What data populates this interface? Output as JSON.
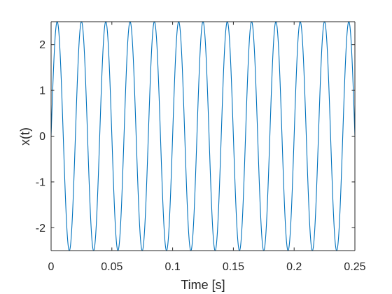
{
  "chart_data": {
    "type": "line",
    "title": "",
    "xlabel": "Time [s]",
    "ylabel": "x(t)",
    "xlim": [
      0,
      0.25
    ],
    "ylim": [
      -2.5,
      2.5
    ],
    "grid": false,
    "legend": "none",
    "x_ticks": [
      {
        "value": 0,
        "label": "0"
      },
      {
        "value": 0.05,
        "label": "0.05"
      },
      {
        "value": 0.1,
        "label": "0.1"
      },
      {
        "value": 0.15,
        "label": "0.15"
      },
      {
        "value": 0.2,
        "label": "0.2"
      },
      {
        "value": 0.25,
        "label": "0.25"
      }
    ],
    "y_ticks": [
      {
        "value": -2,
        "label": "-2"
      },
      {
        "value": -1,
        "label": "-1"
      },
      {
        "value": 0,
        "label": "0"
      },
      {
        "value": 1,
        "label": "1"
      },
      {
        "value": 2,
        "label": "2"
      }
    ],
    "series": [
      {
        "color": "#0072BD",
        "function": "sine",
        "amplitude": 2.5,
        "frequency_hz": 50,
        "phase": 0,
        "t_start": 0,
        "t_end": 0.25
      }
    ]
  },
  "colors": {
    "axis": "#262626",
    "background": "#ffffff"
  }
}
